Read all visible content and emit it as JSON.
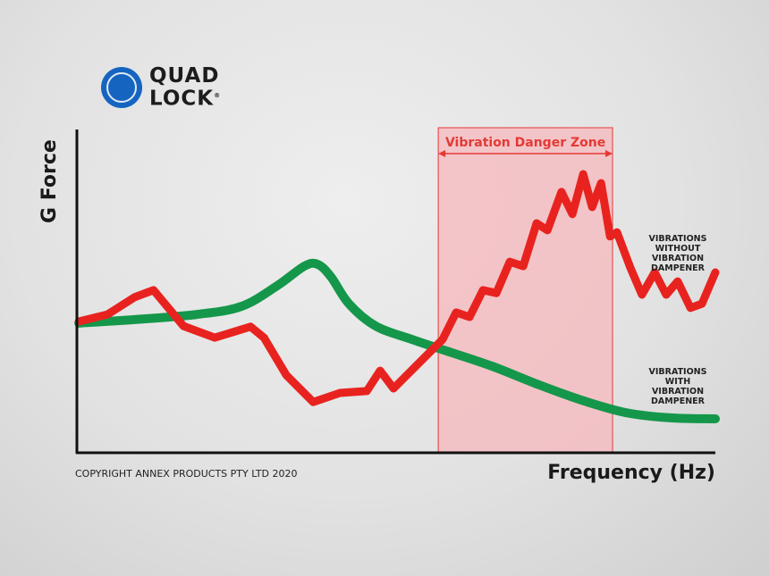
{
  "brand": {
    "logo_text_line1": "QUAD",
    "logo_text_line2": "LOCK",
    "registered": "®",
    "color": "#1565c0"
  },
  "copyright": "COPYRIGHT ANNEX PRODUCTS PTY LTD 2020",
  "chart_data": {
    "type": "line",
    "title": "",
    "xlabel": "Frequency (Hz)",
    "ylabel": "G Force",
    "note": "Axes have no tick labels; values are on a relative 0–100 scale",
    "xlim": [
      0,
      100
    ],
    "ylim": [
      0,
      100
    ],
    "grid": false,
    "legend": "inline labels at right",
    "danger_zone": {
      "label": "Vibration Danger Zone",
      "x_range": [
        56.6,
        83.9
      ],
      "color": "#f7b8bc",
      "border": "#e53935"
    },
    "series": [
      {
        "name": "VIBRATIONS WITHOUT VIBRATION DAMPENER",
        "color": "#e8231f",
        "x": [
          0.3,
          4.8,
          9.0,
          12.0,
          16.7,
          21.6,
          27.2,
          29.3,
          32.8,
          37.0,
          41.2,
          45.4,
          47.5,
          49.6,
          53.8,
          57.3,
          59.4,
          61.5,
          63.6,
          65.7,
          67.8,
          69.9,
          72.0,
          73.7,
          75.9,
          77.6,
          79.3,
          80.7,
          82.1,
          83.5,
          84.6,
          86.7,
          88.5,
          90.5,
          92.3,
          94.1,
          96.1,
          97.9,
          100
        ],
        "y": [
          40.6,
          42.8,
          48.1,
          50.3,
          39.2,
          35.6,
          39.0,
          35.6,
          24.0,
          15.7,
          18.5,
          19.1,
          25.4,
          19.9,
          28.2,
          35.1,
          43.4,
          42.0,
          50.3,
          49.4,
          59.1,
          57.7,
          71.0,
          68.8,
          80.7,
          73.8,
          86.2,
          76.0,
          83.4,
          66.9,
          68.2,
          57.2,
          48.9,
          55.8,
          48.9,
          53.0,
          44.8,
          46.1,
          55.8
        ]
      },
      {
        "name": "VIBRATIONS WITH VIBRATION DAMPENER",
        "color": "#14974a",
        "x": [
          0.3,
          9.0,
          18.8,
          25.8,
          31.4,
          35.6,
          37.7,
          39.8,
          42.6,
          46.8,
          52.4,
          57.9,
          65.0,
          72.0,
          79.0,
          86.0,
          93.0,
          100
        ],
        "y": [
          40.1,
          41.2,
          42.8,
          45.3,
          51.7,
          57.7,
          58.3,
          54.4,
          46.1,
          39.2,
          35.1,
          31.5,
          26.8,
          21.3,
          16.3,
          12.4,
          10.8,
          10.5
        ]
      }
    ]
  }
}
